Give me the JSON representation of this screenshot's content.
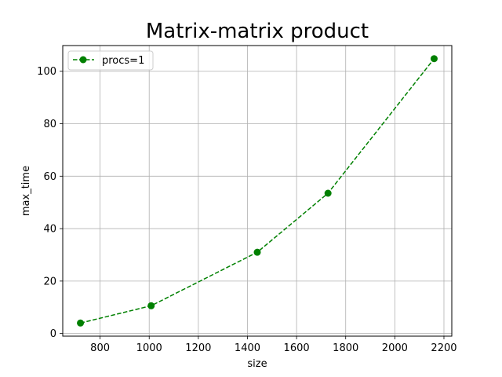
{
  "chart_data": {
    "type": "line",
    "title": "Matrix-matrix product",
    "xlabel": "size",
    "ylabel": "max_time",
    "xlim": [
      648,
      2232
    ],
    "ylim": [
      -1.0,
      109.8
    ],
    "xticks": [
      800,
      1000,
      1200,
      1400,
      1600,
      1800,
      2000,
      2200
    ],
    "yticks": [
      0,
      20,
      40,
      60,
      80,
      100
    ],
    "grid": true,
    "legend": "top-left",
    "series": [
      {
        "name": "procs=1",
        "color": "#008000",
        "line_style": "dashed",
        "marker": "circle",
        "x": [
          720,
          1008,
          1440,
          1728,
          2160
        ],
        "y": [
          4.0,
          10.6,
          31.0,
          53.5,
          104.8
        ]
      }
    ]
  }
}
